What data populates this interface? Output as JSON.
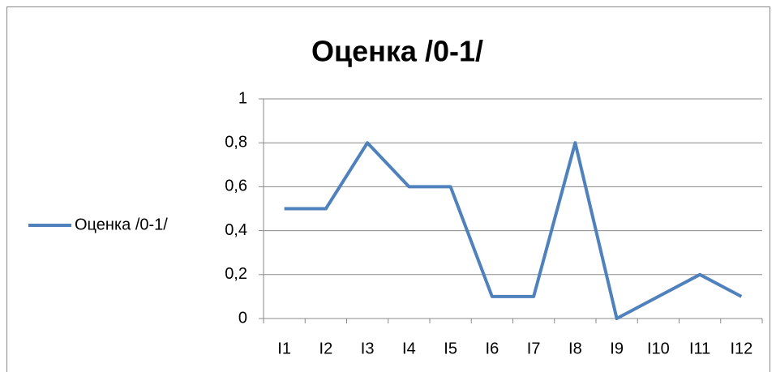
{
  "chart_data": {
    "type": "line",
    "title": "Оценка /0-1/",
    "categories": [
      "I1",
      "I2",
      "I3",
      "I4",
      "I5",
      "I6",
      "I7",
      "I8",
      "I9",
      "I10",
      "I11",
      "I12"
    ],
    "series": [
      {
        "name": "Оценка /0-1/",
        "color": "#4f81bd",
        "values": [
          0.5,
          0.5,
          0.8,
          0.6,
          0.6,
          0.1,
          0.1,
          0.8,
          0,
          0.1,
          0.2,
          0.1
        ]
      }
    ],
    "ylim": [
      0,
      1
    ],
    "yticks": [
      0,
      {
        "value": 0.2,
        "label": "0,2"
      },
      {
        "value": 0.4,
        "label": "0,4"
      },
      {
        "value": 0.6,
        "label": "0,6"
      },
      {
        "value": 0.8,
        "label": "0,8"
      },
      1
    ],
    "grid": true,
    "legend": "left"
  }
}
